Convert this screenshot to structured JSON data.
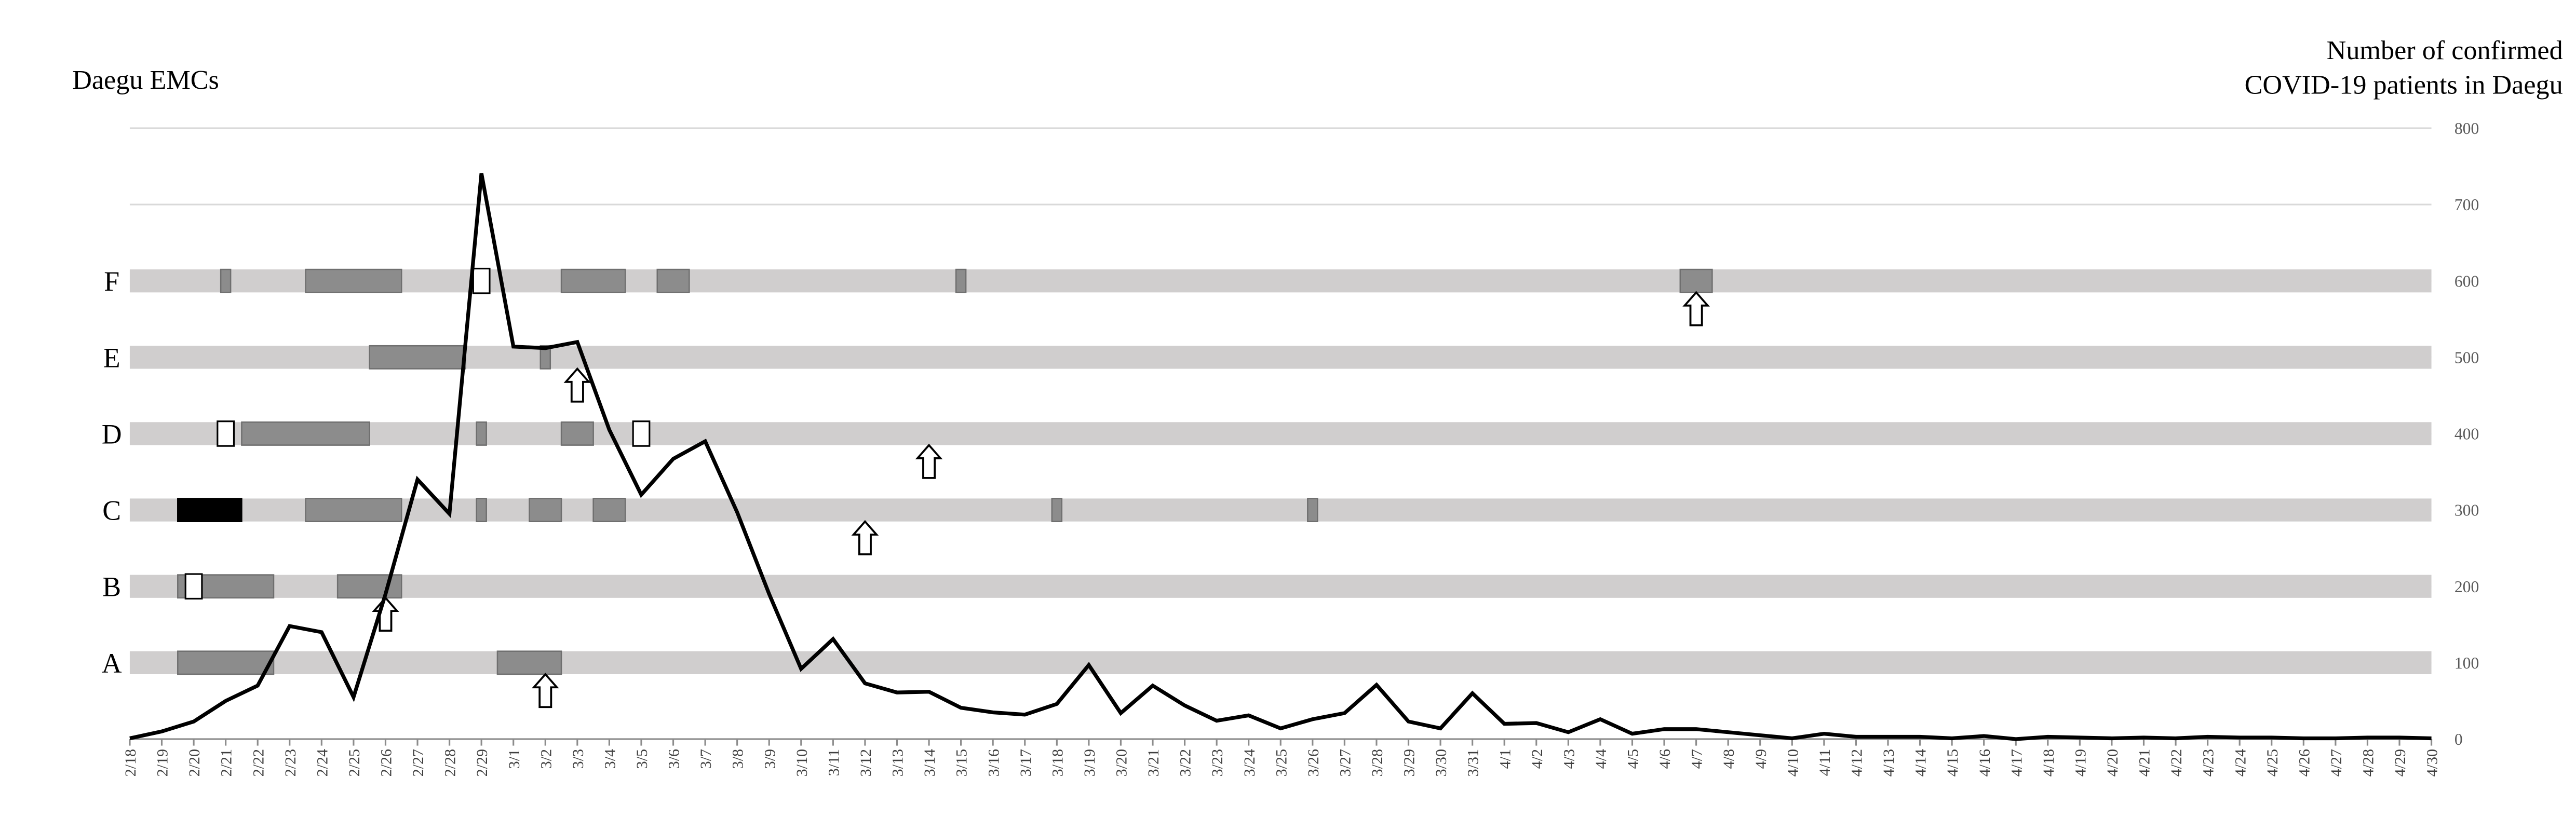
{
  "chart_data": {
    "type": "line",
    "left_title": "Daegu EMCs",
    "axis_title": [
      "Number of confirmed",
      "COVID-19 patients in Daegu"
    ],
    "y_axis_position": "right",
    "categories": [
      "2/18",
      "2/19",
      "2/20",
      "2/21",
      "2/22",
      "2/23",
      "2/24",
      "2/25",
      "2/26",
      "2/27",
      "2/28",
      "2/29",
      "3/1",
      "3/2",
      "3/3",
      "3/4",
      "3/5",
      "3/6",
      "3/7",
      "3/8",
      "3/9",
      "3/10",
      "3/11",
      "3/12",
      "3/13",
      "3/14",
      "3/15",
      "3/16",
      "3/17",
      "3/18",
      "3/19",
      "3/20",
      "3/21",
      "3/22",
      "3/23",
      "3/24",
      "3/25",
      "3/26",
      "3/27",
      "3/28",
      "3/29",
      "3/30",
      "3/31",
      "4/1",
      "4/2",
      "4/3",
      "4/4",
      "4/5",
      "4/6",
      "4/7",
      "4/8",
      "4/9",
      "4/10",
      "4/11",
      "4/12",
      "4/13",
      "4/14",
      "4/15",
      "4/16",
      "4/17",
      "4/18",
      "4/19",
      "4/20",
      "4/21",
      "4/22",
      "4/23",
      "4/24",
      "4/25",
      "4/26",
      "4/27",
      "4/28",
      "4/29",
      "4/30"
    ],
    "values": [
      1,
      10,
      23,
      50,
      70,
      148,
      140,
      55,
      190,
      340,
      295,
      741,
      514,
      512,
      520,
      405,
      320,
      367,
      390,
      297,
      190,
      92,
      131,
      73,
      61,
      62,
      41,
      35,
      32,
      46,
      97,
      34,
      70,
      44,
      24,
      31,
      14,
      26,
      34,
      71,
      23,
      14,
      60,
      20,
      21,
      9,
      26,
      7,
      13,
      13,
      9,
      5,
      1,
      7,
      3,
      3,
      3,
      1,
      4,
      0,
      3,
      2,
      1,
      2,
      1,
      3,
      2,
      2,
      1,
      1,
      2,
      2,
      1
    ],
    "color": "#000000",
    "ylim": [
      0,
      800
    ],
    "yticks": [
      0,
      100,
      200,
      300,
      400,
      500,
      600,
      700,
      800
    ],
    "grid": true,
    "rows": [
      {
        "name": "A",
        "closures": [
          [
            "2/20",
            "2/22"
          ],
          [
            "3/1",
            "3/2"
          ]
        ],
        "brief": [],
        "white": [],
        "black": [],
        "arrows": [
          "3/2"
        ]
      },
      {
        "name": "B",
        "closures": [
          [
            "2/20",
            "2/22"
          ],
          [
            "2/25",
            "2/26"
          ]
        ],
        "brief": [],
        "white": [
          "2/20"
        ],
        "black": [],
        "arrows": [
          "2/26"
        ]
      },
      {
        "name": "C",
        "closures": [
          [
            "2/24",
            "2/26"
          ],
          [
            "3/2",
            "3/2"
          ],
          [
            "3/4",
            "3/4"
          ]
        ],
        "brief": [
          "2/29",
          "3/18",
          "3/26"
        ],
        "white": [],
        "black": [
          [
            "2/20",
            "2/21"
          ]
        ],
        "arrows": [
          "3/12"
        ]
      },
      {
        "name": "D",
        "closures": [
          [
            "2/22",
            "2/25"
          ],
          [
            "3/3",
            "3/3"
          ]
        ],
        "brief": [
          "2/29"
        ],
        "white": [
          "2/21",
          "3/5"
        ],
        "black": [],
        "arrows": [
          "3/14"
        ]
      },
      {
        "name": "E",
        "closures": [
          [
            "2/26",
            "2/28"
          ]
        ],
        "brief": [
          "3/2"
        ],
        "white": [],
        "black": [],
        "arrows": [
          "3/3"
        ]
      },
      {
        "name": "F",
        "closures": [
          [
            "2/24",
            "2/26"
          ],
          [
            "3/3",
            "3/4"
          ],
          [
            "3/6",
            "3/6"
          ],
          [
            "4/7",
            "4/7"
          ]
        ],
        "brief": [
          "2/21",
          "3/15"
        ],
        "white": [
          "2/29"
        ],
        "black": [],
        "arrows": [
          "4/7"
        ]
      }
    ],
    "row_color": "#d0cece",
    "closure_color": "#8c8c8c"
  }
}
